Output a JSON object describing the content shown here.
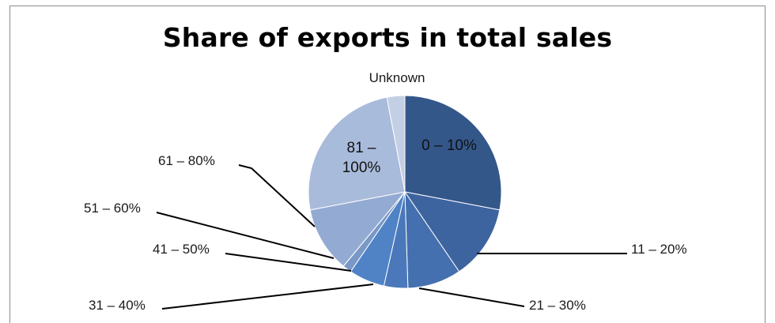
{
  "chart_data": {
    "type": "pie",
    "title": "Share of exports in total sales",
    "slices": [
      {
        "label": "0 – 10%",
        "value": 28.0,
        "color": "#34578a"
      },
      {
        "label": "11 – 20%",
        "value": 12.5,
        "color": "#3e64a0"
      },
      {
        "label": "21 – 30%",
        "value": 9.0,
        "color": "#4570b0"
      },
      {
        "label": "31 – 40%",
        "value": 4.0,
        "color": "#4a78bb"
      },
      {
        "label": "41 – 50%",
        "value": 6.0,
        "color": "#5083c6"
      },
      {
        "label": "51 – 60%",
        "value": 1.5,
        "color": "#7a98c6"
      },
      {
        "label": "61 – 80%",
        "value": 11.0,
        "color": "#93abd2"
      },
      {
        "label": "81 – 100%",
        "value": 25.0,
        "color": "#a9bbdb"
      },
      {
        "label": "Unknown",
        "value": 3.0,
        "color": "#c3cfe4"
      }
    ]
  }
}
